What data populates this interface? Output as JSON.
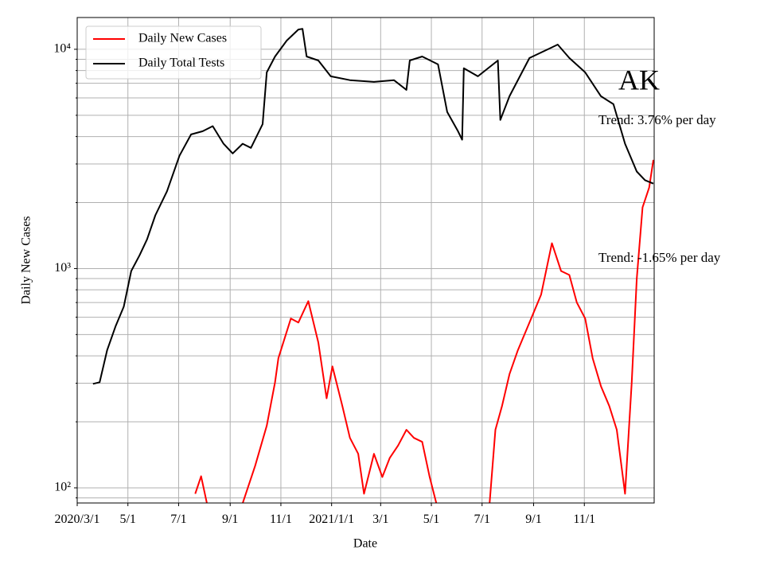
{
  "chart_data": {
    "type": "line",
    "title": "AK",
    "annotations": [
      "Trend: 3.76% per day",
      "Trend: -1.65% per day"
    ],
    "xlabel": "Date",
    "ylabel": "Daily New Cases",
    "log_y": true,
    "grid": true,
    "minor_grid": true,
    "legend": "upper left",
    "xlim": [
      "2020-03-01",
      "2022-01-24"
    ],
    "xticks": [
      {
        "value": "2020-03-01",
        "label": "2020/3/1"
      },
      {
        "value": "2020-05-01",
        "label": "5/1"
      },
      {
        "value": "2020-07-01",
        "label": "7/1"
      },
      {
        "value": "2020-09-01",
        "label": "9/1"
      },
      {
        "value": "2020-11-01",
        "label": "11/1"
      },
      {
        "value": "2021-01-01",
        "label": "2021/1/1"
      },
      {
        "value": "2021-03-01",
        "label": "3/1"
      },
      {
        "value": "2021-05-01",
        "label": "5/1"
      },
      {
        "value": "2021-07-01",
        "label": "7/1"
      },
      {
        "value": "2021-09-01",
        "label": "9/1"
      },
      {
        "value": "2021-11-01",
        "label": "11/1"
      }
    ],
    "ylim": [
      85.3,
      13960
    ],
    "yticks": [
      {
        "value": 100,
        "label": "10²"
      },
      {
        "value": 1000,
        "label": "10³"
      },
      {
        "value": 10000,
        "label": "10⁴"
      }
    ],
    "yminorticks": [
      90,
      200,
      300,
      400,
      500,
      600,
      700,
      800,
      900,
      2000,
      3000,
      4000,
      5000,
      6000,
      7000,
      8000,
      9000
    ],
    "series": [
      {
        "name": "Daily New Cases",
        "color": "#ff0000",
        "x": [
          "2020-07-21",
          "2020-07-28",
          "2020-08-04",
          "2020-08-10",
          "2020-09-16",
          "2020-10-01",
          "2020-10-15",
          "2020-10-25",
          "2020-10-29",
          "2020-11-13",
          "2020-11-22",
          "2020-12-04",
          "2020-12-16",
          "2020-12-26",
          "2021-01-02",
          "2021-01-14",
          "2021-01-23",
          "2021-02-02",
          "2021-02-09",
          "2021-02-21",
          "2021-03-03",
          "2021-03-12",
          "2021-03-22",
          "2021-04-01",
          "2021-04-10",
          "2021-04-20",
          "2021-04-29",
          "2021-05-07",
          "2021-06-01",
          "2021-07-10",
          "2021-07-17",
          "2021-07-25",
          "2021-08-03",
          "2021-08-13",
          "2021-08-27",
          "2021-09-10",
          "2021-09-23",
          "2021-10-04",
          "2021-10-14",
          "2021-10-23",
          "2021-11-02",
          "2021-11-11",
          "2021-11-21",
          "2021-12-01",
          "2021-12-10",
          "2021-12-20",
          "2021-12-28",
          "2022-01-03",
          "2022-01-10",
          "2022-01-18",
          "2022-01-23"
        ],
        "values": [
          94,
          113,
          85,
          null,
          85,
          126,
          192,
          303,
          390,
          592,
          567,
          710,
          460,
          256,
          358,
          236,
          169,
          143,
          94,
          143,
          112,
          137,
          156,
          184,
          169,
          162,
          112,
          85,
          null,
          85,
          184,
          236,
          330,
          424,
          567,
          760,
          1305,
          975,
          935,
          700,
          592,
          390,
          291,
          236,
          184,
          94,
          303,
          897,
          1900,
          2340,
          3130
        ]
      },
      {
        "name": "Daily Total Tests",
        "color": "#000000",
        "x": [
          "2020-03-20",
          "2020-03-28",
          "2020-04-06",
          "2020-04-16",
          "2020-04-26",
          "2020-05-05",
          "2020-05-15",
          "2020-05-24",
          "2020-06-03",
          "2020-06-17",
          "2020-07-02",
          "2020-07-16",
          "2020-07-30",
          "2020-08-11",
          "2020-08-24",
          "2020-09-04",
          "2020-09-16",
          "2020-09-26",
          "2020-10-10",
          "2020-10-15",
          "2020-10-25",
          "2020-11-08",
          "2020-11-22",
          "2020-11-27",
          "2020-12-02",
          "2020-12-16",
          "2020-12-31",
          "2021-01-23",
          "2021-02-21",
          "2021-03-17",
          "2021-04-01",
          "2021-04-05",
          "2021-04-20",
          "2021-05-09",
          "2021-05-20",
          "2021-06-02",
          "2021-06-07",
          "2021-06-09",
          "2021-06-26",
          "2021-07-20",
          "2021-07-23",
          "2021-08-03",
          "2021-08-27",
          "2021-09-20",
          "2021-09-30",
          "2021-10-14",
          "2021-11-02",
          "2021-11-21",
          "2021-12-06",
          "2021-12-20",
          "2022-01-03",
          "2022-01-13",
          "2022-01-23"
        ],
        "values": [
          298,
          303,
          424,
          544,
          670,
          975,
          1150,
          1360,
          1750,
          2250,
          3270,
          4090,
          4230,
          4460,
          3710,
          3350,
          3710,
          3550,
          4560,
          7850,
          9270,
          10960,
          12300,
          12400,
          9270,
          8890,
          7530,
          7230,
          7100,
          7230,
          6530,
          8890,
          9270,
          8530,
          5180,
          4230,
          3870,
          8190,
          7530,
          8890,
          4760,
          6110,
          9120,
          10080,
          10510,
          9120,
          7850,
          6110,
          5620,
          3710,
          2770,
          2530,
          2440
        ]
      }
    ]
  }
}
